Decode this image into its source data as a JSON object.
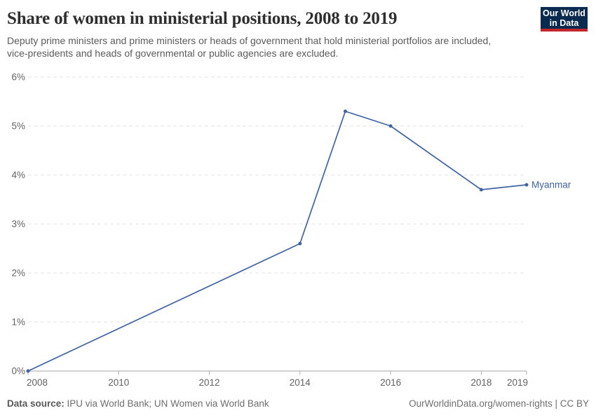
{
  "header": {
    "title": "Share of women in ministerial positions, 2008 to 2019",
    "subtitle": "Deputy prime ministers and prime ministers or heads of government that hold ministerial portfolios are included, vice-presidents and heads of governmental or public agencies are excluded.",
    "logo": {
      "line1": "Our World",
      "line2": "in Data"
    }
  },
  "colors": {
    "series_line": "#4064a3",
    "logo_bg": "#0b2a4f",
    "logo_accent": "#c5262c"
  },
  "chart_data": {
    "type": "line",
    "title": "Share of women in ministerial positions, 2008 to 2019",
    "xlabel": "",
    "ylabel": "",
    "xlim": [
      2008,
      2019
    ],
    "ylim": [
      0,
      6
    ],
    "grid": "horizontal-dashed",
    "legend_position": "end-of-line-label",
    "x_ticks": [
      {
        "value": 2008,
        "label": "2008"
      },
      {
        "value": 2010,
        "label": "2010"
      },
      {
        "value": 2012,
        "label": "2012"
      },
      {
        "value": 2014,
        "label": "2014"
      },
      {
        "value": 2016,
        "label": "2016"
      },
      {
        "value": 2018,
        "label": "2018"
      },
      {
        "value": 2019,
        "label": "2019"
      }
    ],
    "y_ticks": [
      {
        "value": 0,
        "label": "0%"
      },
      {
        "value": 1,
        "label": "1%"
      },
      {
        "value": 2,
        "label": "2%"
      },
      {
        "value": 3,
        "label": "3%"
      },
      {
        "value": 4,
        "label": "4%"
      },
      {
        "value": 5,
        "label": "5%"
      },
      {
        "value": 6,
        "label": "6%"
      }
    ],
    "series": [
      {
        "name": "Myanmar",
        "color": "#4064a3",
        "x": [
          2008,
          2014,
          2015,
          2016,
          2018,
          2019
        ],
        "values": [
          0,
          2.6,
          5.3,
          5.0,
          3.7,
          3.8
        ]
      }
    ]
  },
  "footer": {
    "source_label": "Data source:",
    "source_text": " IPU via World Bank; UN Women via World Bank",
    "url": "OurWorldinData.org/women-rights",
    "separator": " | ",
    "license": "CC BY"
  }
}
